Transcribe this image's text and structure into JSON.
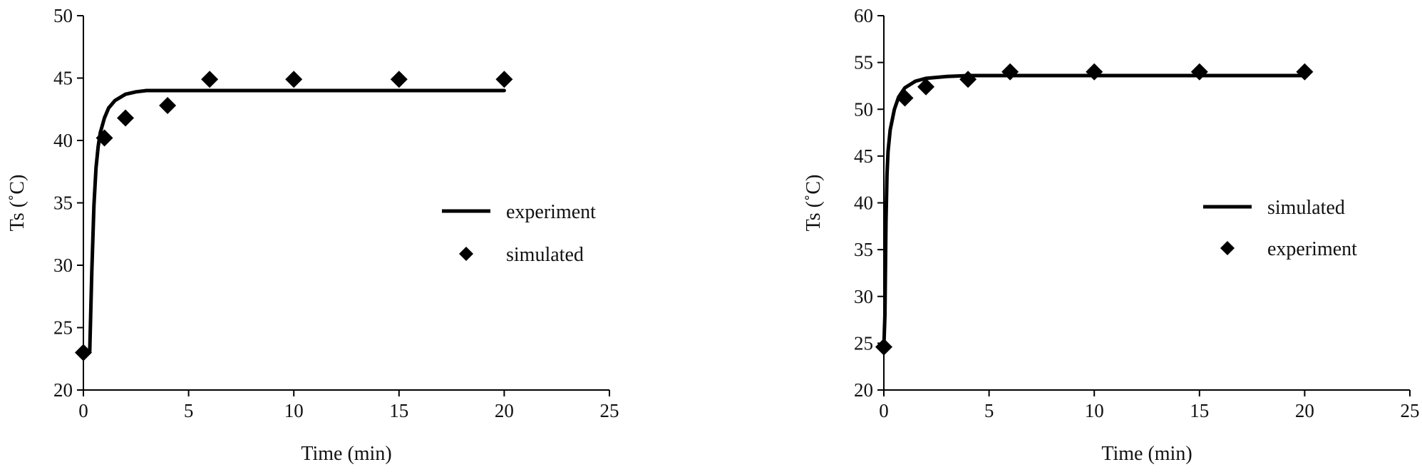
{
  "chart_data": [
    {
      "type": "line",
      "xlabel": "Time (min)",
      "ylabel": "Ts (˚C)",
      "xlim": [
        0,
        25
      ],
      "ylim": [
        20,
        50
      ],
      "xticks": [
        0,
        5,
        10,
        15,
        20,
        25
      ],
      "yticks": [
        20,
        25,
        30,
        35,
        40,
        45,
        50
      ],
      "grid": false,
      "legend_position": "right",
      "series": [
        {
          "name": "experiment",
          "style": "line",
          "color": "#000000",
          "x": [
            0,
            0.2,
            0.3,
            0.4,
            0.5,
            0.6,
            0.7,
            0.8,
            1.0,
            1.2,
            1.5,
            2.0,
            2.5,
            3.0,
            4.0,
            6.0,
            10.0,
            15.0,
            20.0
          ],
          "y": [
            23.0,
            23.0,
            23.1,
            29.5,
            34.8,
            37.8,
            39.5,
            40.6,
            41.8,
            42.6,
            43.2,
            43.7,
            43.9,
            44.0,
            44.0,
            44.0,
            44.0,
            44.0,
            44.0
          ]
        },
        {
          "name": "simulated",
          "style": "marker",
          "marker": "diamond",
          "color": "#000000",
          "x": [
            0,
            1,
            2,
            4,
            6,
            10,
            15,
            20
          ],
          "y": [
            23.0,
            40.2,
            41.8,
            42.8,
            44.9,
            44.9,
            44.9,
            44.9
          ]
        }
      ]
    },
    {
      "type": "line",
      "xlabel": "Time (min)",
      "ylabel": "Ts (˚C)",
      "xlim": [
        0,
        25
      ],
      "ylim": [
        20,
        60
      ],
      "xticks": [
        0,
        5,
        10,
        15,
        20,
        25
      ],
      "yticks": [
        20,
        25,
        30,
        35,
        40,
        45,
        50,
        55,
        60
      ],
      "grid": false,
      "legend_position": "right",
      "series": [
        {
          "name": "simulated",
          "style": "line",
          "color": "#000000",
          "x": [
            0,
            0.05,
            0.1,
            0.15,
            0.2,
            0.3,
            0.5,
            0.7,
            1.0,
            1.5,
            2.0,
            3.0,
            4.0,
            6.0,
            10.0,
            15.0,
            20.0
          ],
          "y": [
            24.6,
            28.0,
            38.0,
            43.0,
            45.5,
            47.8,
            50.0,
            51.3,
            52.3,
            53.0,
            53.3,
            53.5,
            53.6,
            53.6,
            53.6,
            53.6,
            53.6
          ]
        },
        {
          "name": "experiment",
          "style": "marker",
          "marker": "diamond",
          "color": "#000000",
          "x": [
            0,
            1,
            2,
            4,
            6,
            10,
            15,
            20
          ],
          "y": [
            24.6,
            51.2,
            52.4,
            53.2,
            54.0,
            54.0,
            54.0,
            54.0
          ]
        }
      ]
    }
  ]
}
